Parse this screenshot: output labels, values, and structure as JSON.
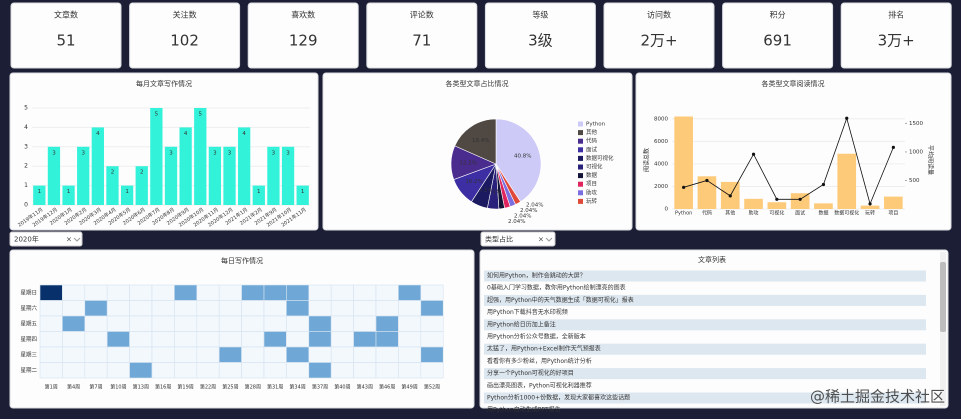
{
  "cards": [
    {
      "label": "文章数",
      "value": "51"
    },
    {
      "label": "关注数",
      "value": "102"
    },
    {
      "label": "喜欢数",
      "value": "129"
    },
    {
      "label": "评论数",
      "value": "71"
    },
    {
      "label": "等级",
      "value": "3级"
    },
    {
      "label": "访问数",
      "value": "2万+"
    },
    {
      "label": "积分",
      "value": "691"
    },
    {
      "label": "排名",
      "value": "3万+"
    }
  ],
  "filters": [
    "2020年",
    "类型占比"
  ],
  "chart_data": [
    {
      "type": "bar",
      "title": "每月文章写作情况",
      "categories": [
        "2019年11月",
        "2019年12月",
        "2020年1月",
        "2020年2月",
        "2020年3月",
        "2020年4月",
        "2020年5月",
        "2020年6月",
        "2020年7月",
        "2020年8月",
        "2020年9月",
        "2020年10月",
        "2020年11月",
        "2020年12月",
        "2021年1月",
        "2021年2月",
        "2021年9月",
        "2021年10月",
        "2021年11月"
      ],
      "values": [
        1,
        3,
        1,
        3,
        4,
        2,
        1,
        2,
        5,
        3,
        4,
        5,
        3,
        3,
        4,
        1,
        3,
        3,
        1
      ],
      "color": "#33f2da",
      "ylim": [
        0,
        5
      ],
      "yticks": [
        0,
        1,
        2,
        3,
        4,
        5
      ],
      "grid": true
    },
    {
      "type": "pie",
      "title": "各类型文章占比情况",
      "categories": [
        "Python",
        "其他",
        "代码",
        "面试",
        "数据可视化",
        "可视化",
        "数据",
        "项目",
        "助攻",
        "玩转"
      ],
      "values": [
        40.8,
        18.4,
        12.2,
        10.2,
        6.1,
        4.1,
        2.04,
        2.04,
        2.04,
        2.04
      ],
      "value_labels": [
        "40.8%",
        "18.4%",
        "12.2%",
        "10.2%",
        "6.1%",
        "4.1%",
        "2.04%",
        "2.04%",
        "2.04%",
        "2.04%"
      ],
      "colors": [
        "#cdcaf7",
        "#4f4843",
        "#4a2b8e",
        "#3d2fa3",
        "#1b1a60",
        "#28207a",
        "#141438",
        "#e0245e",
        "#7a6ee0",
        "#e04a3a"
      ]
    },
    {
      "type": "combo",
      "title": "各类型文章阅读情况",
      "categories": [
        "Python",
        "代码",
        "其他",
        "助攻",
        "可视化",
        "面试",
        "数据",
        "数据可视化",
        "玩转",
        "项目"
      ],
      "y_label": "阅读总数",
      "y2_label": "平均阅读量",
      "series": [
        {
          "kind": "bar",
          "color": "#fdca7a",
          "values": [
            8200,
            2900,
            2400,
            900,
            600,
            1400,
            500,
            4900,
            300,
            1100
          ]
        },
        {
          "kind": "line",
          "axis": "y2",
          "color": "#111111",
          "values": [
            380,
            500,
            230,
            960,
            170,
            170,
            430,
            1590,
            90,
            1080
          ]
        }
      ],
      "ylim": [
        0,
        8600
      ],
      "yticks": [
        0,
        2000,
        4000,
        6000,
        8000
      ],
      "y2lim": [
        0,
        1700
      ],
      "y2ticks": [
        500,
        1000,
        1500
      ],
      "grid": true
    },
    {
      "type": "heatmap",
      "title": "每日写作情况",
      "x": [
        "第1周",
        "第4周",
        "第7周",
        "第10周",
        "第13周",
        "第16周",
        "第19周",
        "第22周",
        "第25周",
        "第28周",
        "第31周",
        "第34周",
        "第37周",
        "第40周",
        "第43周",
        "第46周",
        "第49周",
        "第52周"
      ],
      "y": [
        "星期日",
        "星期六",
        "星期五",
        "星期四",
        "星期三",
        "星期二"
      ],
      "values": [
        [
          2,
          0,
          0,
          0,
          0,
          0,
          1,
          0,
          0,
          1,
          1,
          1,
          0,
          0,
          0,
          0,
          1,
          0
        ],
        [
          0,
          0,
          1,
          0,
          0,
          0,
          0,
          0,
          0,
          0,
          0,
          1,
          0,
          0,
          0,
          0,
          0,
          1
        ],
        [
          0,
          1,
          0,
          0,
          0,
          0,
          0,
          0,
          0,
          0,
          0,
          0,
          1,
          0,
          0,
          1,
          0,
          0
        ],
        [
          0,
          0,
          0,
          1,
          0,
          0,
          0,
          0,
          0,
          0,
          1,
          0,
          1,
          0,
          1,
          1,
          0,
          0
        ],
        [
          0,
          0,
          0,
          0,
          0,
          0,
          0,
          0,
          1,
          0,
          0,
          1,
          0,
          0,
          0,
          0,
          0,
          1
        ],
        [
          0,
          0,
          0,
          0,
          1,
          0,
          0,
          0,
          0,
          0,
          0,
          0,
          1,
          0,
          0,
          0,
          0,
          0
        ]
      ],
      "colorscale": [
        "#f3f8fd",
        "#6fa8d6",
        "#08306b"
      ]
    }
  ],
  "article_list": {
    "title": "文章列表",
    "items": [
      "如何用Python，制作会跳动的大屏？",
      "0基础入门学习数据，教你用Python绘制漂亮的图表",
      "超强，用Python中的天气数据生成「数据可视化」报表",
      "用Python下载抖音无水印视频",
      "用Python给日历加上备注",
      "用Python分析公众号数据，全新版本",
      "太猛了，用Python+Excel制作天气预报表",
      "看看你有多少粉丝，用Python统计分析",
      "分享一个Python可视化的好项目",
      "画出漂亮图表，Python可视化利器推荐",
      "Python分析1000+份数据，发现大家都喜欢这些话题",
      "用Python自动生成PPT报告"
    ]
  },
  "watermark": "@稀土掘金技术社区"
}
